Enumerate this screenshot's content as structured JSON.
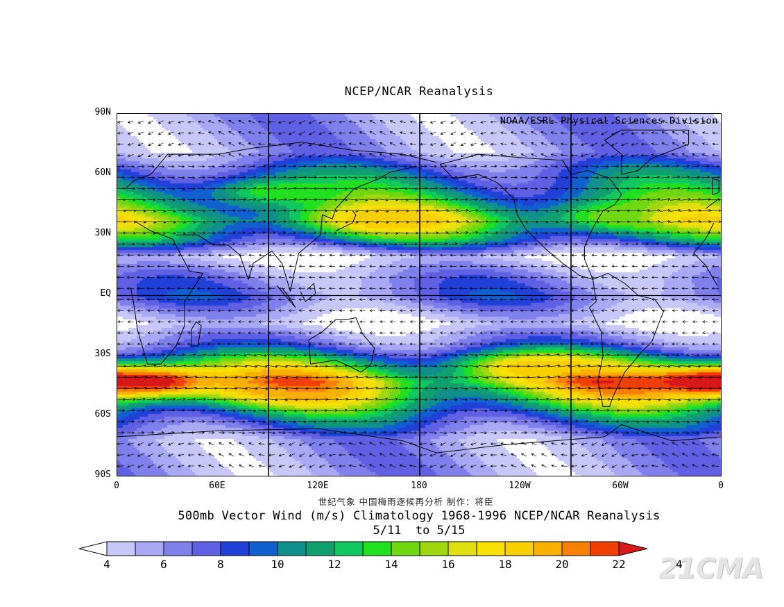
{
  "title": "NCEP/NCAR Reanalysis",
  "credit": "NOAA/ESRL Physical Sciences Division",
  "lat_labels": [
    "90N",
    "60N",
    "30N",
    "EQ",
    "30S",
    "60S",
    "90S"
  ],
  "lon_labels": [
    "0",
    "60E",
    "120E",
    "180",
    "120W",
    "60W",
    "0"
  ],
  "chinese_credit": "世纪气象  中国梅雨逐候再分析  制作：将臣",
  "subtitle_1": "500mb Vector Wind (m/s) Climatology 1968-1996 NCEP/NCAR Reanalysis",
  "subtitle_2": "5/11  to 5/15",
  "colorbar": {
    "labels": [
      "4",
      "6",
      "8",
      "10",
      "12",
      "14",
      "16",
      "18",
      "20",
      "22",
      "24"
    ],
    "colors": [
      "#c8c8f8",
      "#a8a8f4",
      "#8080ec",
      "#6060e4",
      "#2040d8",
      "#1060d0",
      "#10908c",
      "#10a070",
      "#10c860",
      "#20e020",
      "#70d810",
      "#a0d810",
      "#e0e010",
      "#f8e000",
      "#f8d000",
      "#f8b000",
      "#f88000",
      "#f04000",
      "#d81818"
    ]
  },
  "watermark": "21CMA",
  "field": {
    "bands": [
      {
        "lat": 72,
        "speed": 7
      },
      {
        "lat": 62,
        "speed": 11
      },
      {
        "lat": 47,
        "speed": 15
      },
      {
        "lat": 38,
        "speed": 18
      },
      {
        "lat": 29,
        "speed": 13
      },
      {
        "lat": 20,
        "speed": 5
      },
      {
        "lat": 9,
        "speed": 8
      },
      {
        "lat": 0,
        "speed": 9
      },
      {
        "lat": -13,
        "speed": 5
      },
      {
        "lat": -24,
        "speed": 9
      },
      {
        "lat": -33,
        "speed": 16
      },
      {
        "lat": -42,
        "speed": 21
      },
      {
        "lat": -50,
        "speed": 18
      },
      {
        "lat": -60,
        "speed": 12
      },
      {
        "lat": -71,
        "speed": 7
      }
    ],
    "jets": [
      {
        "lon": 95,
        "lat": 52,
        "speed": 14
      },
      {
        "lon": 160,
        "lat": 38,
        "speed": 19
      },
      {
        "lon": 300,
        "lat": 40,
        "speed": 15
      },
      {
        "lon": 20,
        "lat": -42,
        "speed": 23
      },
      {
        "lon": 345,
        "lat": -42,
        "speed": 23
      },
      {
        "lon": 100,
        "lat": -45,
        "speed": 20
      },
      {
        "lon": 250,
        "lat": -35,
        "speed": 19
      }
    ]
  }
}
